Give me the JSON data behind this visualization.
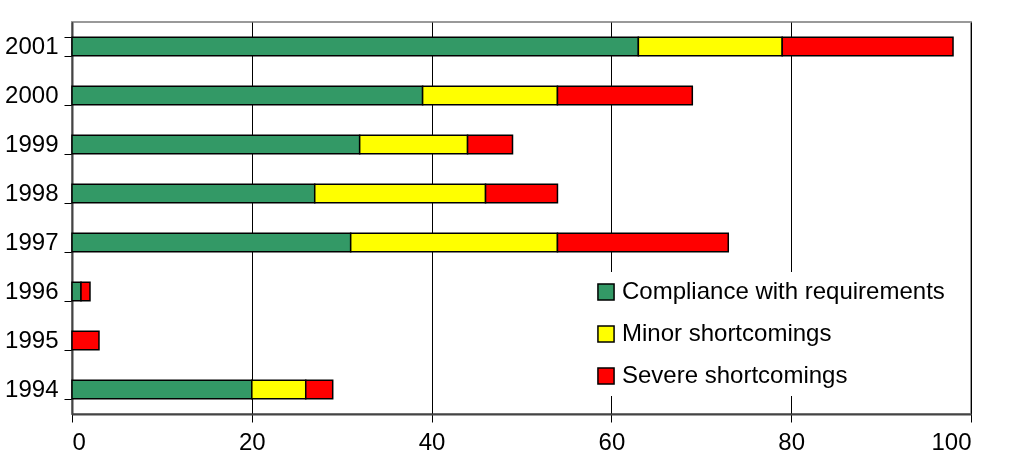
{
  "chart_data": {
    "type": "bar",
    "orientation": "horizontal",
    "stacked": true,
    "categories": [
      "2001",
      "2000",
      "1999",
      "1998",
      "1997",
      "1996",
      "1995",
      "1994"
    ],
    "series": [
      {
        "name": "Compliance with requirements",
        "color": "#339966",
        "values": [
          63,
          39,
          32,
          27,
          31,
          1,
          0,
          20
        ]
      },
      {
        "name": "Minor shortcomings",
        "color": "#ffff00",
        "values": [
          16,
          15,
          12,
          19,
          23,
          0,
          0,
          6
        ]
      },
      {
        "name": "Severe shortcomings",
        "color": "#ff0000",
        "values": [
          19,
          15,
          5,
          8,
          19,
          1,
          3,
          3
        ]
      }
    ],
    "xlim": [
      0,
      100
    ],
    "xticks": [
      0,
      20,
      40,
      60,
      80,
      100
    ],
    "grid": "x",
    "legend": "bottom right"
  }
}
